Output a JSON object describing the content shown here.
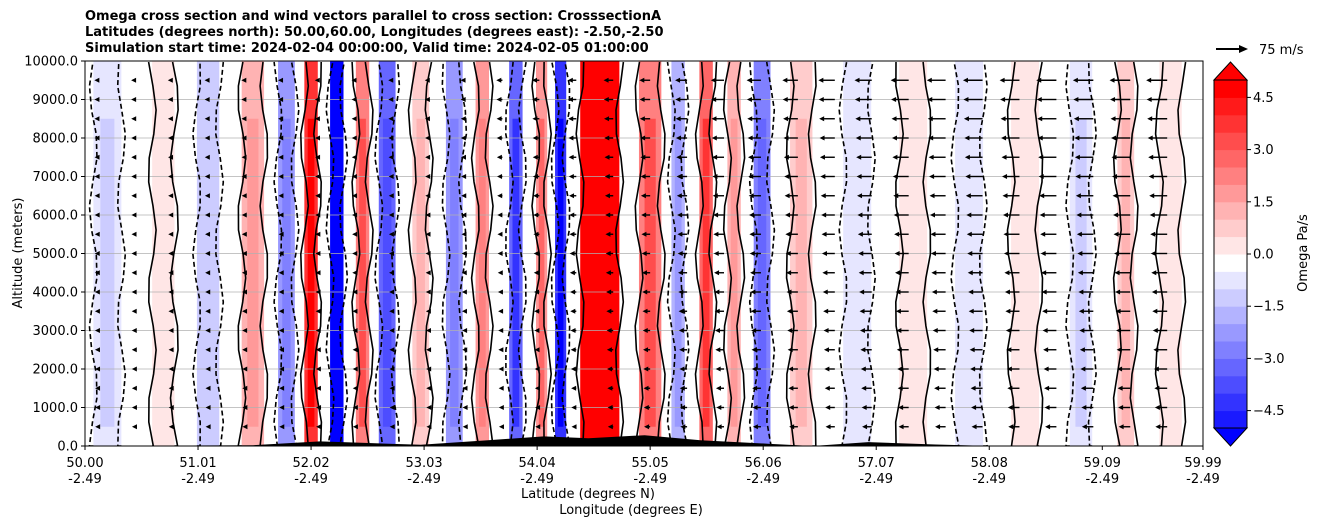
{
  "chart_data": {
    "type": "heatmap",
    "title_lines": [
      "Omega cross section and wind vectors parallel to cross section: CrosssectionA",
      "Latitudes (degrees north): 50.00,60.00, Longitudes (degrees east): -2.50,-2.50",
      "Simulation start time: 2024-02-04 00:00:00, Valid time: 2024-02-05 01:00:00"
    ],
    "xlabel": "Latitude (degrees N)",
    "xlabel2": "Longitude (degrees E)",
    "ylabel": "Altitude (meters)",
    "x_ticks": [
      {
        "lat": "50.00",
        "lon": "-2.49"
      },
      {
        "lat": "51.01",
        "lon": "-2.49"
      },
      {
        "lat": "52.02",
        "lon": "-2.49"
      },
      {
        "lat": "53.03",
        "lon": "-2.49"
      },
      {
        "lat": "54.04",
        "lon": "-2.49"
      },
      {
        "lat": "55.05",
        "lon": "-2.49"
      },
      {
        "lat": "56.06",
        "lon": "-2.49"
      },
      {
        "lat": "57.07",
        "lon": "-2.49"
      },
      {
        "lat": "58.08",
        "lon": "-2.49"
      },
      {
        "lat": "59.09",
        "lon": "-2.49"
      },
      {
        "lat": "59.99",
        "lon": "-2.49"
      }
    ],
    "xlim": [
      50.0,
      59.99
    ],
    "y_ticks": [
      "0.0",
      "1000.0",
      "2000.0",
      "3000.0",
      "4000.0",
      "5000.0",
      "6000.0",
      "7000.0",
      "8000.0",
      "9000.0",
      "10000.0"
    ],
    "ylim": [
      0,
      10000
    ],
    "grid": true,
    "colorbar": {
      "label": "Omega Pa/s",
      "ticks": [
        "4.5",
        "3.0",
        "1.5",
        "0.0",
        "−1.5",
        "−3.0",
        "−4.5"
      ],
      "range": [
        -5,
        5
      ],
      "extend": "both",
      "colors": {
        "negative": "#0000ff",
        "zero": "#ffffff",
        "positive": "#ff0000"
      }
    },
    "reference_vector": "75 m/s",
    "omega_columns": [
      {
        "lat": 50.2,
        "width": 0.25,
        "omega": -0.6
      },
      {
        "lat": 50.7,
        "width": 0.2,
        "omega": 0.4
      },
      {
        "lat": 51.1,
        "width": 0.2,
        "omega": -0.8
      },
      {
        "lat": 51.5,
        "width": 0.2,
        "omega": 1.5
      },
      {
        "lat": 51.8,
        "width": 0.15,
        "omega": -2.0
      },
      {
        "lat": 52.02,
        "width": 0.12,
        "omega": 3.8
      },
      {
        "lat": 52.25,
        "width": 0.12,
        "omega": -5.0
      },
      {
        "lat": 52.48,
        "width": 0.12,
        "omega": 2.5
      },
      {
        "lat": 52.7,
        "width": 0.15,
        "omega": -2.8
      },
      {
        "lat": 53.0,
        "width": 0.15,
        "omega": 1.2
      },
      {
        "lat": 53.3,
        "width": 0.15,
        "omega": -1.8
      },
      {
        "lat": 53.55,
        "width": 0.12,
        "omega": 2.0
      },
      {
        "lat": 53.85,
        "width": 0.12,
        "omega": -3.2
      },
      {
        "lat": 54.08,
        "width": 0.1,
        "omega": 2.2
      },
      {
        "lat": 54.25,
        "width": 0.1,
        "omega": -4.0
      },
      {
        "lat": 54.6,
        "width": 0.35,
        "omega": 5.0
      },
      {
        "lat": 55.05,
        "width": 0.2,
        "omega": 2.5
      },
      {
        "lat": 55.3,
        "width": 0.12,
        "omega": -1.5
      },
      {
        "lat": 55.55,
        "width": 0.12,
        "omega": 3.0
      },
      {
        "lat": 55.8,
        "width": 0.12,
        "omega": 1.5
      },
      {
        "lat": 56.05,
        "width": 0.15,
        "omega": -2.5
      },
      {
        "lat": 56.4,
        "width": 0.2,
        "omega": 1.0
      },
      {
        "lat": 56.9,
        "width": 0.25,
        "omega": -0.4
      },
      {
        "lat": 57.4,
        "width": 0.25,
        "omega": 0.5
      },
      {
        "lat": 57.9,
        "width": 0.25,
        "omega": -0.5
      },
      {
        "lat": 58.4,
        "width": 0.25,
        "omega": 0.3
      },
      {
        "lat": 58.9,
        "width": 0.2,
        "omega": -0.6
      },
      {
        "lat": 59.3,
        "width": 0.15,
        "omega": 1.2
      },
      {
        "lat": 59.7,
        "width": 0.2,
        "omega": 0.4
      }
    ],
    "wind_profile": [
      {
        "lat": 50.0,
        "u": -5
      },
      {
        "lat": 53.0,
        "u": -10
      },
      {
        "lat": 55.0,
        "u": -30
      },
      {
        "lat": 56.5,
        "u": -45
      },
      {
        "lat": 58.0,
        "u": -55
      },
      {
        "lat": 59.99,
        "u": -60
      }
    ],
    "terrain": [
      {
        "lat": 50.0,
        "alt": 0
      },
      {
        "lat": 51.5,
        "alt": 20
      },
      {
        "lat": 52.1,
        "alt": 120
      },
      {
        "lat": 52.5,
        "alt": 80
      },
      {
        "lat": 53.0,
        "alt": 30
      },
      {
        "lat": 53.6,
        "alt": 150
      },
      {
        "lat": 54.1,
        "alt": 250
      },
      {
        "lat": 54.5,
        "alt": 200
      },
      {
        "lat": 55.0,
        "alt": 280
      },
      {
        "lat": 55.5,
        "alt": 150
      },
      {
        "lat": 56.1,
        "alt": 60
      },
      {
        "lat": 56.5,
        "alt": 0
      },
      {
        "lat": 57.0,
        "alt": 100
      },
      {
        "lat": 57.6,
        "alt": 40
      },
      {
        "lat": 58.1,
        "alt": 0
      },
      {
        "lat": 59.99,
        "alt": 0
      }
    ]
  }
}
